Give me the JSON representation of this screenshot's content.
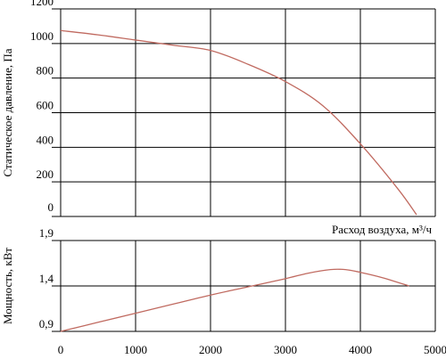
{
  "chart_data": [
    {
      "type": "line",
      "title": "",
      "xlabel": "Расход воздуха, м³/ч",
      "ylabel": "Статическое давление, Па",
      "xlim": [
        0,
        5000
      ],
      "ylim": [
        0,
        1200
      ],
      "x_ticks": [
        "0",
        "1000",
        "2000",
        "3000",
        "4000",
        "5000"
      ],
      "y_ticks": [
        "0",
        "200",
        "400",
        "600",
        "800",
        "1000",
        "1200"
      ],
      "grid": true,
      "series": [
        {
          "color": "#c06a60",
          "x": [
            0,
            500,
            1000,
            1500,
            2000,
            2500,
            3000,
            3500,
            4000,
            4500,
            4750
          ],
          "y": [
            1075,
            1050,
            1020,
            990,
            960,
            880,
            780,
            640,
            420,
            160,
            10
          ]
        }
      ]
    },
    {
      "type": "line",
      "title": "",
      "xlabel": "",
      "ylabel": "Мощность, кВт",
      "xlim": [
        0,
        5000
      ],
      "ylim": [
        0.9,
        1.9
      ],
      "x_ticks": [
        "0",
        "1000",
        "2000",
        "3000",
        "4000",
        "5000"
      ],
      "y_ticks": [
        "0,9",
        "1,4",
        "1,9"
      ],
      "grid": true,
      "series": [
        {
          "color": "#c06a60",
          "x": [
            0,
            500,
            1000,
            1500,
            2000,
            2500,
            3000,
            3300,
            3600,
            3800,
            4000,
            4300,
            4650
          ],
          "y": [
            0.9,
            1.0,
            1.1,
            1.2,
            1.3,
            1.39,
            1.48,
            1.54,
            1.58,
            1.58,
            1.55,
            1.49,
            1.4
          ]
        }
      ]
    }
  ]
}
